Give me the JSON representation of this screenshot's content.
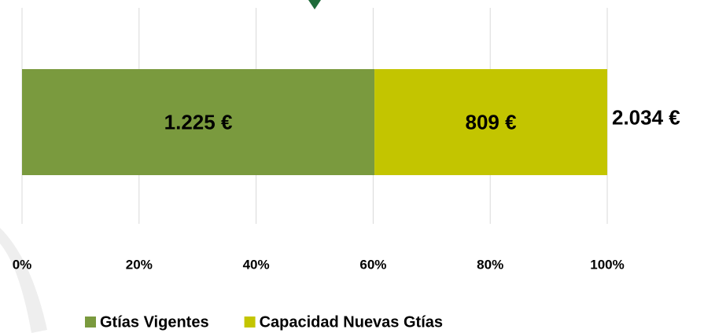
{
  "chart_data": {
    "type": "stacked-bar-100",
    "categories": [
      null
    ],
    "series": [
      {
        "name": "Gtías Vigentes",
        "color": "#7a9a3e",
        "values": [
          1225
        ],
        "value_labels": [
          "1.225 €"
        ]
      },
      {
        "name": "Capacidad Nuevas Gtías",
        "color": "#c3c500",
        "values": [
          809
        ],
        "value_labels": [
          "809 €"
        ]
      }
    ],
    "annotations": [
      {
        "text": "2.034 €"
      }
    ],
    "xlim": [
      0,
      100
    ],
    "xticks": [
      {
        "value": 0,
        "label": "0%"
      },
      {
        "value": 20,
        "label": "20%"
      },
      {
        "value": 40,
        "label": "40%"
      },
      {
        "value": 60,
        "label": "60%"
      },
      {
        "value": 80,
        "label": "80%"
      },
      {
        "value": 100,
        "label": "100%"
      }
    ],
    "grid": true,
    "legend": "bottom"
  }
}
